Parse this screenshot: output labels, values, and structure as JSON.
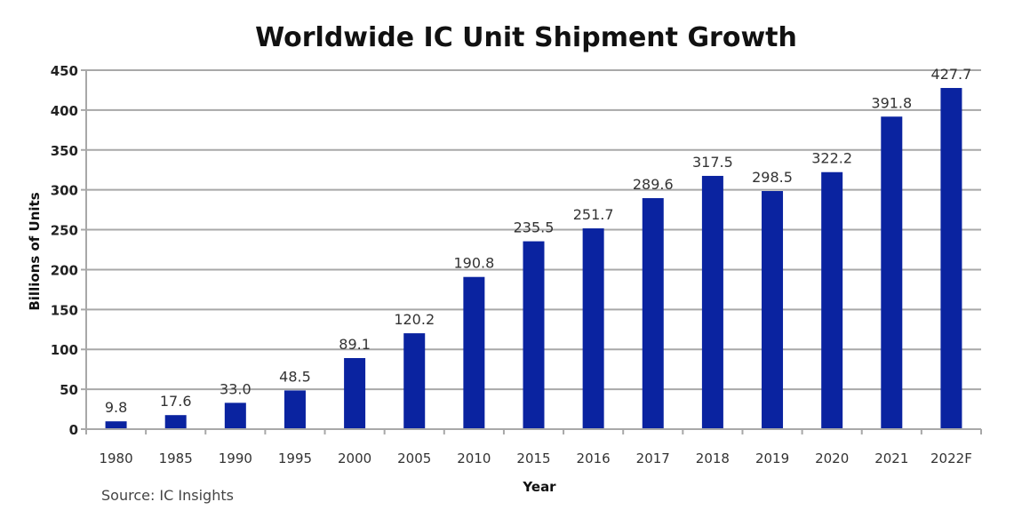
{
  "chart_data": {
    "type": "bar",
    "title": "Worldwide IC Unit Shipment Growth",
    "xlabel": "Year",
    "ylabel": "Billions of Units",
    "categories": [
      "1980",
      "1985",
      "1990",
      "1995",
      "2000",
      "2005",
      "2010",
      "2015",
      "2016",
      "2017",
      "2018",
      "2019",
      "2020",
      "2021",
      "2022F"
    ],
    "values": [
      9.8,
      17.6,
      33.0,
      48.5,
      89.1,
      120.2,
      190.8,
      235.5,
      251.7,
      289.6,
      317.5,
      298.5,
      322.2,
      391.8,
      427.7
    ],
    "data_labels": [
      "9.8",
      "17.6",
      "33.0",
      "48.5",
      "89.1",
      "120.2",
      "190.8",
      "235.5",
      "251.7",
      "289.6",
      "317.5",
      "298.5",
      "322.2",
      "391.8",
      "427.7"
    ],
    "ylim": [
      0,
      450
    ],
    "yticks": [
      0,
      50,
      100,
      150,
      200,
      250,
      300,
      350,
      400,
      450
    ],
    "grid": true,
    "legend": "none",
    "source": "Source:  IC Insights",
    "bar_color": "#0a23a0",
    "grid_color": "#a8a8a8"
  }
}
